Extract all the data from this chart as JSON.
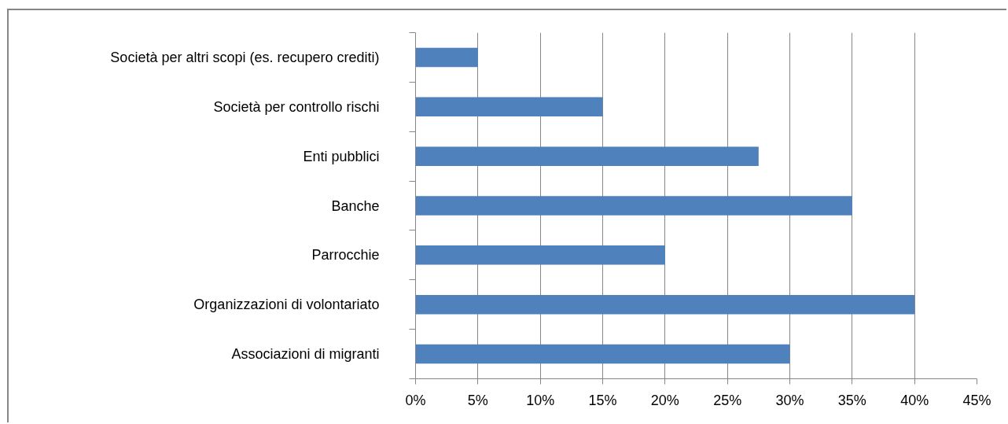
{
  "chart_data": {
    "type": "bar",
    "orientation": "horizontal",
    "categories": [
      "Società per altri scopi (es. recupero crediti)",
      "Società per controllo rischi",
      "Enti pubblici",
      "Banche",
      "Parrocchie",
      "Organizzazioni di volontariato",
      "Associazioni di migranti"
    ],
    "values": [
      5,
      15,
      27.5,
      35,
      20,
      40,
      30
    ],
    "color": "#4f81bd",
    "xlim": [
      0,
      45
    ],
    "xticks": [
      {
        "value": 0,
        "label": "0%"
      },
      {
        "value": 5,
        "label": "5%"
      },
      {
        "value": 10,
        "label": "10%"
      },
      {
        "value": 15,
        "label": "15%"
      },
      {
        "value": 20,
        "label": "20%"
      },
      {
        "value": 25,
        "label": "25%"
      },
      {
        "value": 30,
        "label": "30%"
      },
      {
        "value": 35,
        "label": "35%"
      },
      {
        "value": 40,
        "label": "40%"
      },
      {
        "value": 45,
        "label": "45%"
      }
    ],
    "grid": "x"
  }
}
